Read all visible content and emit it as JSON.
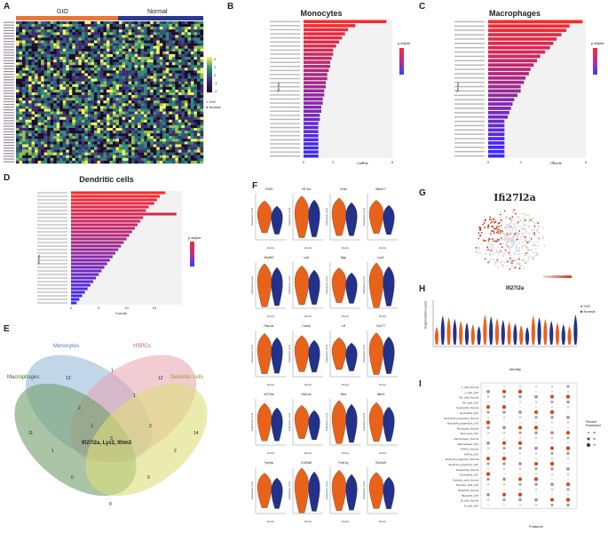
{
  "panels": {
    "A": {
      "label": "A",
      "groups": [
        "GIO",
        "Normal"
      ],
      "colors": {
        "GIO": "#e8773a",
        "Normal": "#2b3a8f"
      },
      "colorbar": [
        "2",
        "1",
        "0",
        "-1",
        "-2"
      ],
      "legend": [
        "GIO",
        "Normal"
      ]
    },
    "B": {
      "label": "B",
      "title": "Monocytes",
      "xlabel": "Counts",
      "ylabel": "Terms",
      "legend_title": "p.adjust"
    },
    "C": {
      "label": "C",
      "title": "Macrophages",
      "xlabel": "Counts",
      "ylabel": "Terms",
      "legend_title": "p.adjust"
    },
    "D": {
      "label": "D",
      "title": "Dendritic cells",
      "xlabel": "Counts",
      "ylabel": "Terms",
      "legend_title": "p.adjust"
    },
    "E": {
      "label": "E",
      "sets": [
        "Monocytes",
        "HSPCs",
        "Macrophages",
        "Dendritic cells"
      ],
      "counts": [
        "13",
        "12",
        "11",
        "14",
        "1",
        "2",
        "1",
        "2",
        "1",
        "1",
        "2",
        "3",
        "0",
        "0",
        "0"
      ],
      "center_text": "Ifi27l2a, Lyz2, Ifitm3"
    },
    "F": {
      "label": "F",
      "genes": [
        "Chil3",
        "H2-Ea",
        "Vcan",
        "Wfdc17",
        "Mrpl52",
        "Ly6",
        "Ngp",
        "Lyz2",
        "Hba-a1",
        "Camp",
        "Ltf",
        "Cd177",
        "Ifi27l2a",
        "Hbb-bs",
        "Hba",
        "Ifitm3",
        "Tyrobp",
        "S100a8",
        "Fcer1g",
        "S100a9"
      ],
      "ylabel": "Expression Level",
      "xlabel": "Identity",
      "colors": {
        "GIO": "#e8621a",
        "Normal": "#22318a"
      }
    },
    "G": {
      "label": "G",
      "title": "Ifi27l2a"
    },
    "H": {
      "label": "H",
      "title": "Ifi27l2a",
      "ylabel": "Expression Level",
      "xlabel": "Identity",
      "legend": [
        "GIO",
        "Normal"
      ],
      "colors": {
        "GIO": "#e8621a",
        "Normal": "#22318a"
      }
    },
    "I": {
      "label": "I",
      "xlabel": "Features",
      "legend_title": "Percent Expressed",
      "rows": [
        "T_cells_Normal",
        "T_cells_GIO",
        "NK_cells_Normal",
        "NK_cells_GIO",
        "Neutrophils_Normal",
        "Neutrophils_GIO",
        "Neutrophil_progenitors_Normal",
        "Neutrophil_progenitors_GIO",
        "Monocytes_Normal",
        "Monocytes_GIO",
        "Macrophages_Normal",
        "Macrophages_GIO",
        "HSPCs_Normal",
        "HSPCs_GIO",
        "Erythroid_progenitors_Normal",
        "Erythroid_progenitors_GIO",
        "Eosinophils_Normal",
        "Eosinophils_GIO",
        "Dendritic_cells_Normal",
        "Dendritic_cells_GIO",
        "Basophils_Normal",
        "Basophils_GIO",
        "B_cells_Normal",
        "B_cells_GIO"
      ]
    }
  },
  "chart_data": [
    {
      "type": "bar",
      "panel": "B",
      "title": "Monocytes",
      "xlabel": "Counts",
      "ylabel": "Terms",
      "xlim": [
        0,
        6
      ],
      "ticks": [
        "0",
        "2",
        "4",
        "6"
      ],
      "values": [
        5.6,
        3.5,
        3.0,
        2.8,
        2.6,
        2.4,
        2.2,
        2.0,
        2.0,
        1.9,
        1.8,
        1.8,
        1.7,
        1.6,
        1.6,
        1.5,
        1.5,
        1.4,
        1.4,
        1.3,
        1.3,
        1.2,
        1.2,
        1.1,
        1.1,
        1.0,
        1.0,
        1.0,
        1.0,
        1.0,
        1.0,
        1.0,
        1.0,
        1.0
      ]
    },
    {
      "type": "bar",
      "panel": "C",
      "title": "Macrophages",
      "xlabel": "Counts",
      "ylabel": "Terms",
      "xlim": [
        0,
        6
      ],
      "ticks": [
        "0",
        "2",
        "4",
        "6"
      ],
      "values": [
        5.8,
        5.0,
        4.8,
        4.5,
        4.2,
        4.0,
        3.8,
        3.5,
        3.2,
        3.0,
        2.8,
        2.6,
        2.5,
        2.3,
        2.2,
        2.0,
        2.0,
        1.8,
        1.6,
        1.5,
        1.4,
        1.3,
        1.2,
        1.0,
        1.0,
        1.0,
        1.0,
        1.0,
        1.0,
        1.0,
        1.0,
        1.0
      ]
    },
    {
      "type": "bar",
      "panel": "D",
      "title": "Dendritic cells",
      "xlabel": "Counts",
      "ylabel": "Terms",
      "xlim": [
        0,
        20
      ],
      "ticks": [
        "0",
        "5",
        "10",
        "15"
      ],
      "values": [
        17,
        16,
        15.5,
        15,
        14,
        13.5,
        19,
        13,
        12.5,
        12,
        11.5,
        11,
        10.5,
        10,
        9.5,
        9,
        8.5,
        8,
        7.5,
        7,
        6.5,
        6,
        5.5,
        5,
        4.5,
        4,
        3.5,
        3,
        2.5,
        2,
        1.5,
        1
      ]
    },
    {
      "type": "dot",
      "panel": "I",
      "legend_levels": [
        "25",
        "50",
        "75"
      ]
    }
  ]
}
